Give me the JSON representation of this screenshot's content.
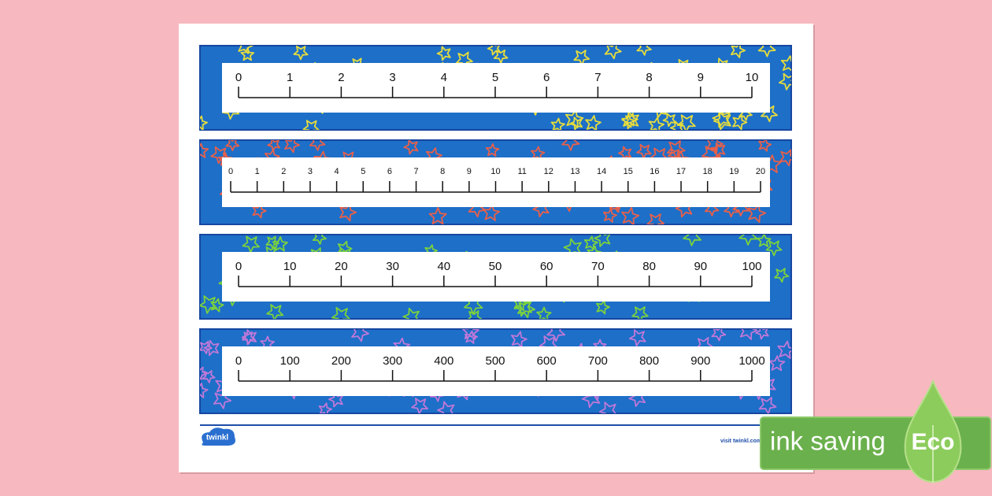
{
  "number_lines": [
    {
      "star_color": "#e6dc3c",
      "ticks": [
        0,
        1,
        2,
        3,
        4,
        5,
        6,
        7,
        8,
        9,
        10
      ]
    },
    {
      "star_color": "#e8604a",
      "ticks": [
        0,
        1,
        2,
        3,
        4,
        5,
        6,
        7,
        8,
        9,
        10,
        11,
        12,
        13,
        14,
        15,
        16,
        17,
        18,
        19,
        20
      ]
    },
    {
      "star_color": "#7cd23c",
      "ticks": [
        0,
        10,
        20,
        30,
        40,
        50,
        60,
        70,
        80,
        90,
        100
      ]
    },
    {
      "star_color": "#c078d8",
      "ticks": [
        0,
        100,
        200,
        300,
        400,
        500,
        600,
        700,
        800,
        900,
        1000
      ]
    }
  ],
  "footer": {
    "logo": "twinkl",
    "url": "visit twinkl.com"
  },
  "badge": {
    "text": "ink saving",
    "label": "Eco"
  }
}
